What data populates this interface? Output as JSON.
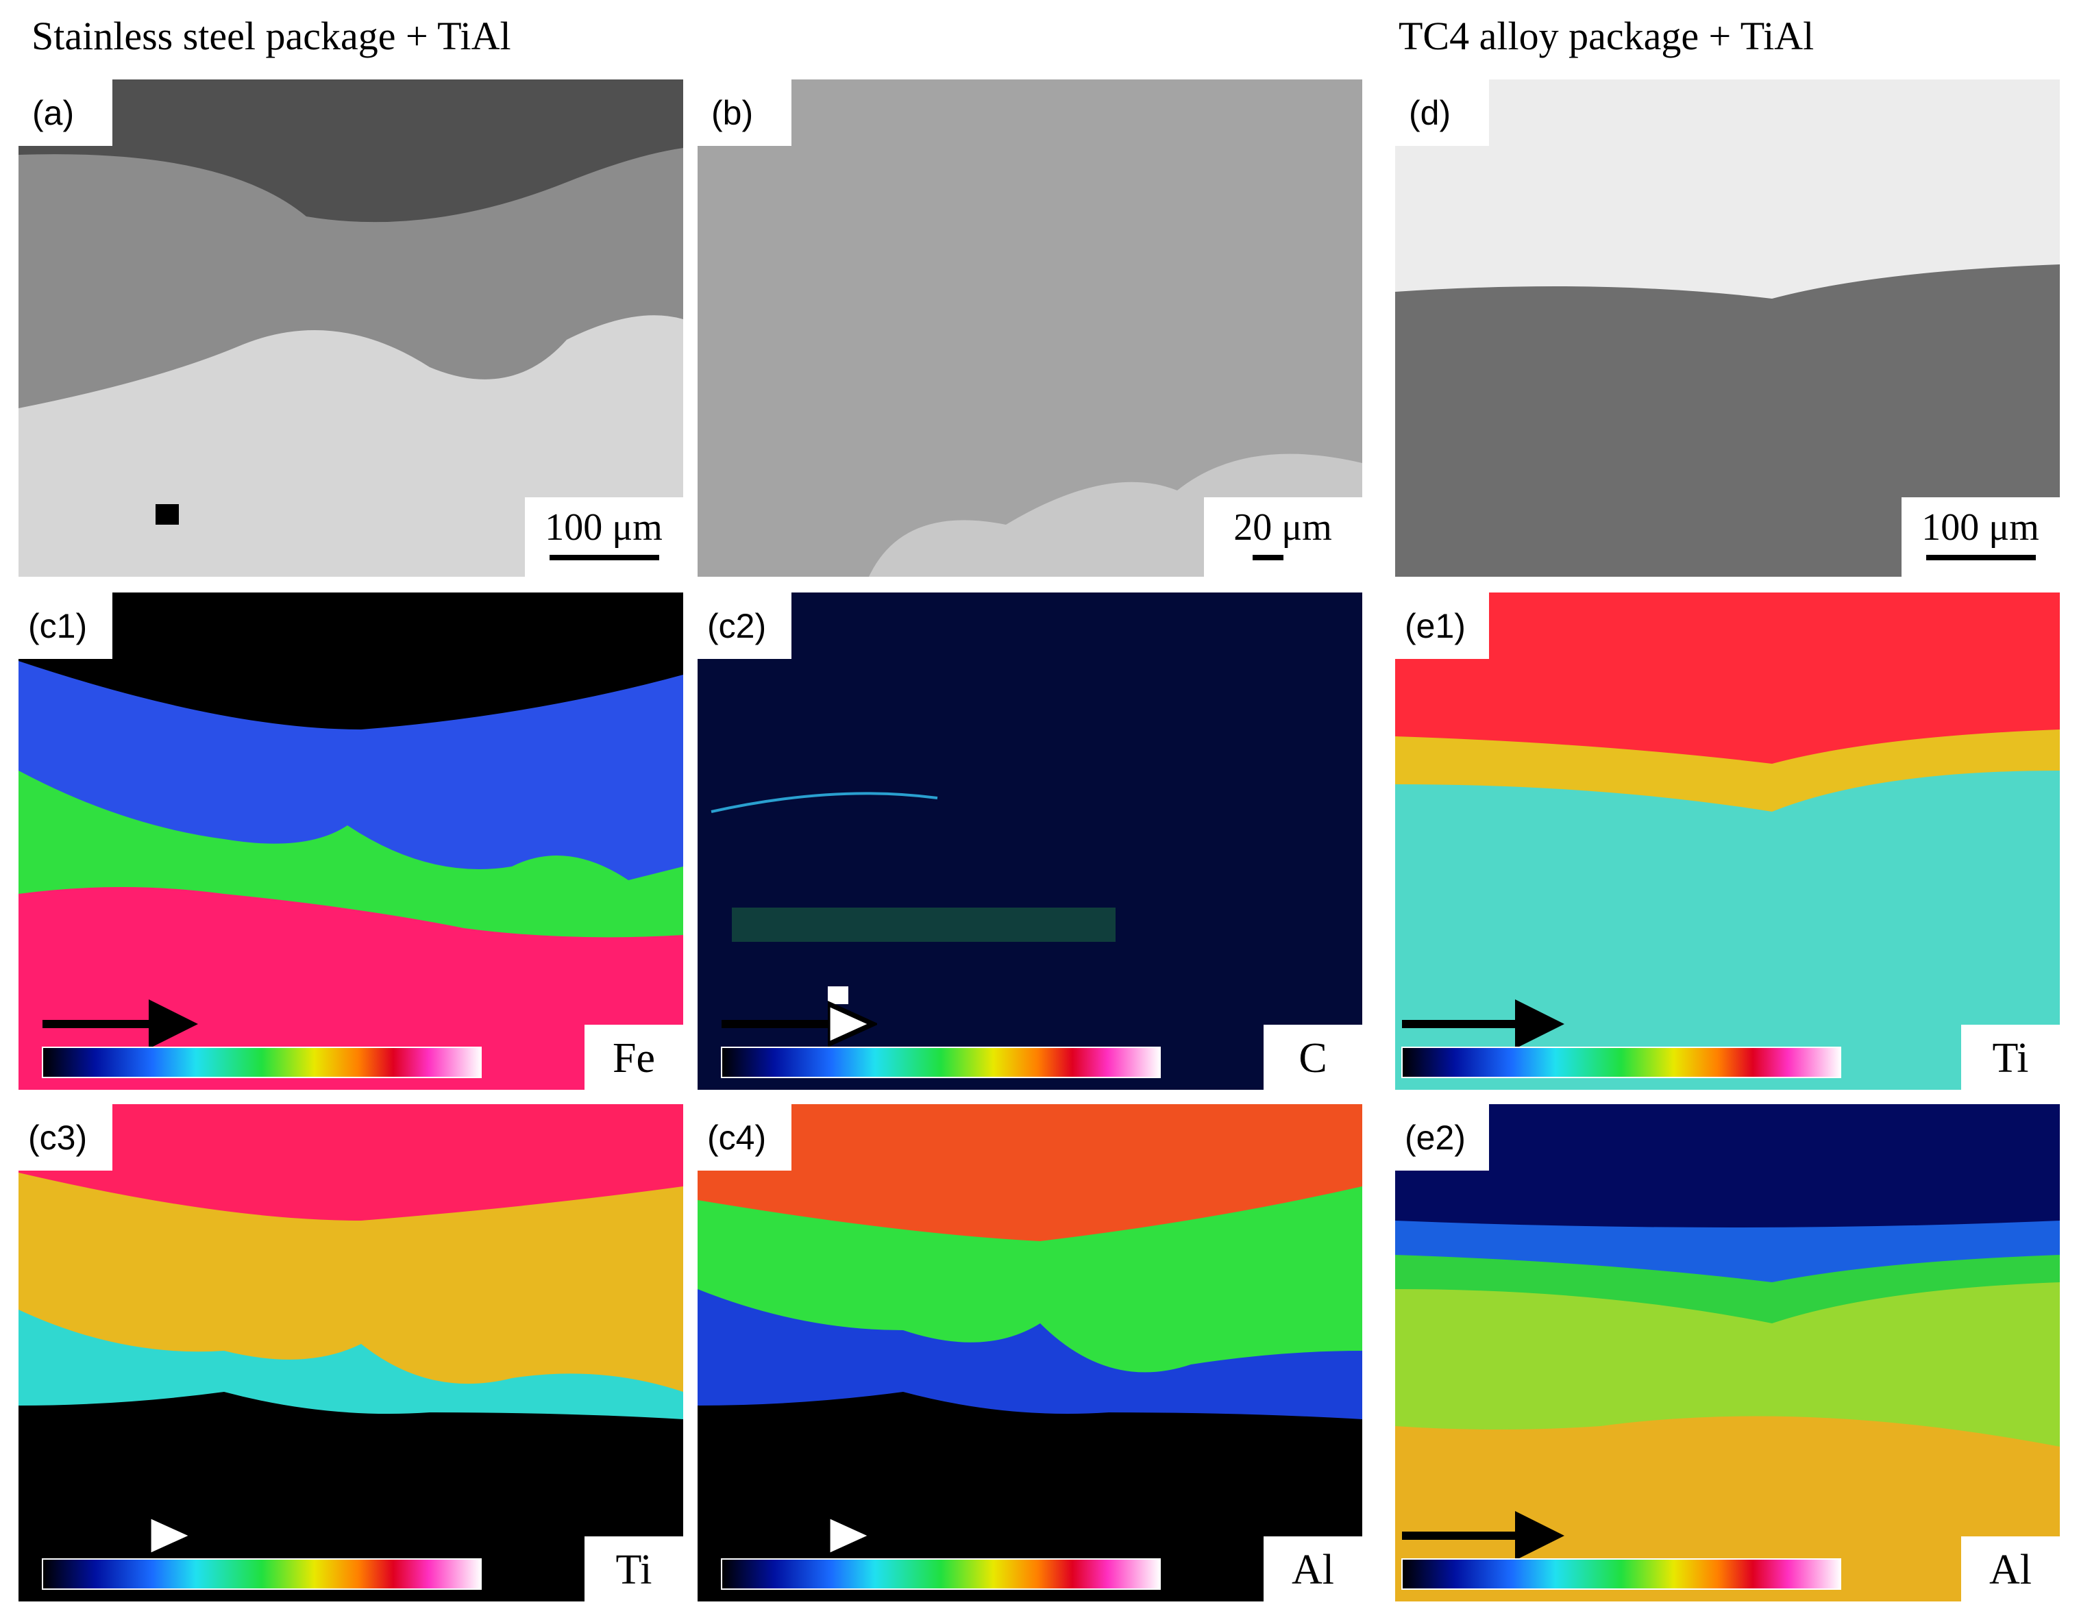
{
  "header": {
    "left": "Stainless steel package + TiAl",
    "right": "TC4 alloy package + TiAl"
  },
  "panels": [
    {
      "label": "(a)",
      "scale_bar": "100 μm"
    },
    {
      "label": "(b)",
      "scale_bar": "20 μm"
    },
    {
      "label": "(d)",
      "scale_bar": "100 μm"
    },
    {
      "label": "(c1)",
      "element": "Fe"
    },
    {
      "label": "(c2)",
      "element": "C"
    },
    {
      "label": "(e1)",
      "element": "Ti"
    },
    {
      "label": "(c3)",
      "element": "Ti"
    },
    {
      "label": "(c4)",
      "element": "Al"
    },
    {
      "label": "(e2)",
      "element": "Al"
    }
  ]
}
